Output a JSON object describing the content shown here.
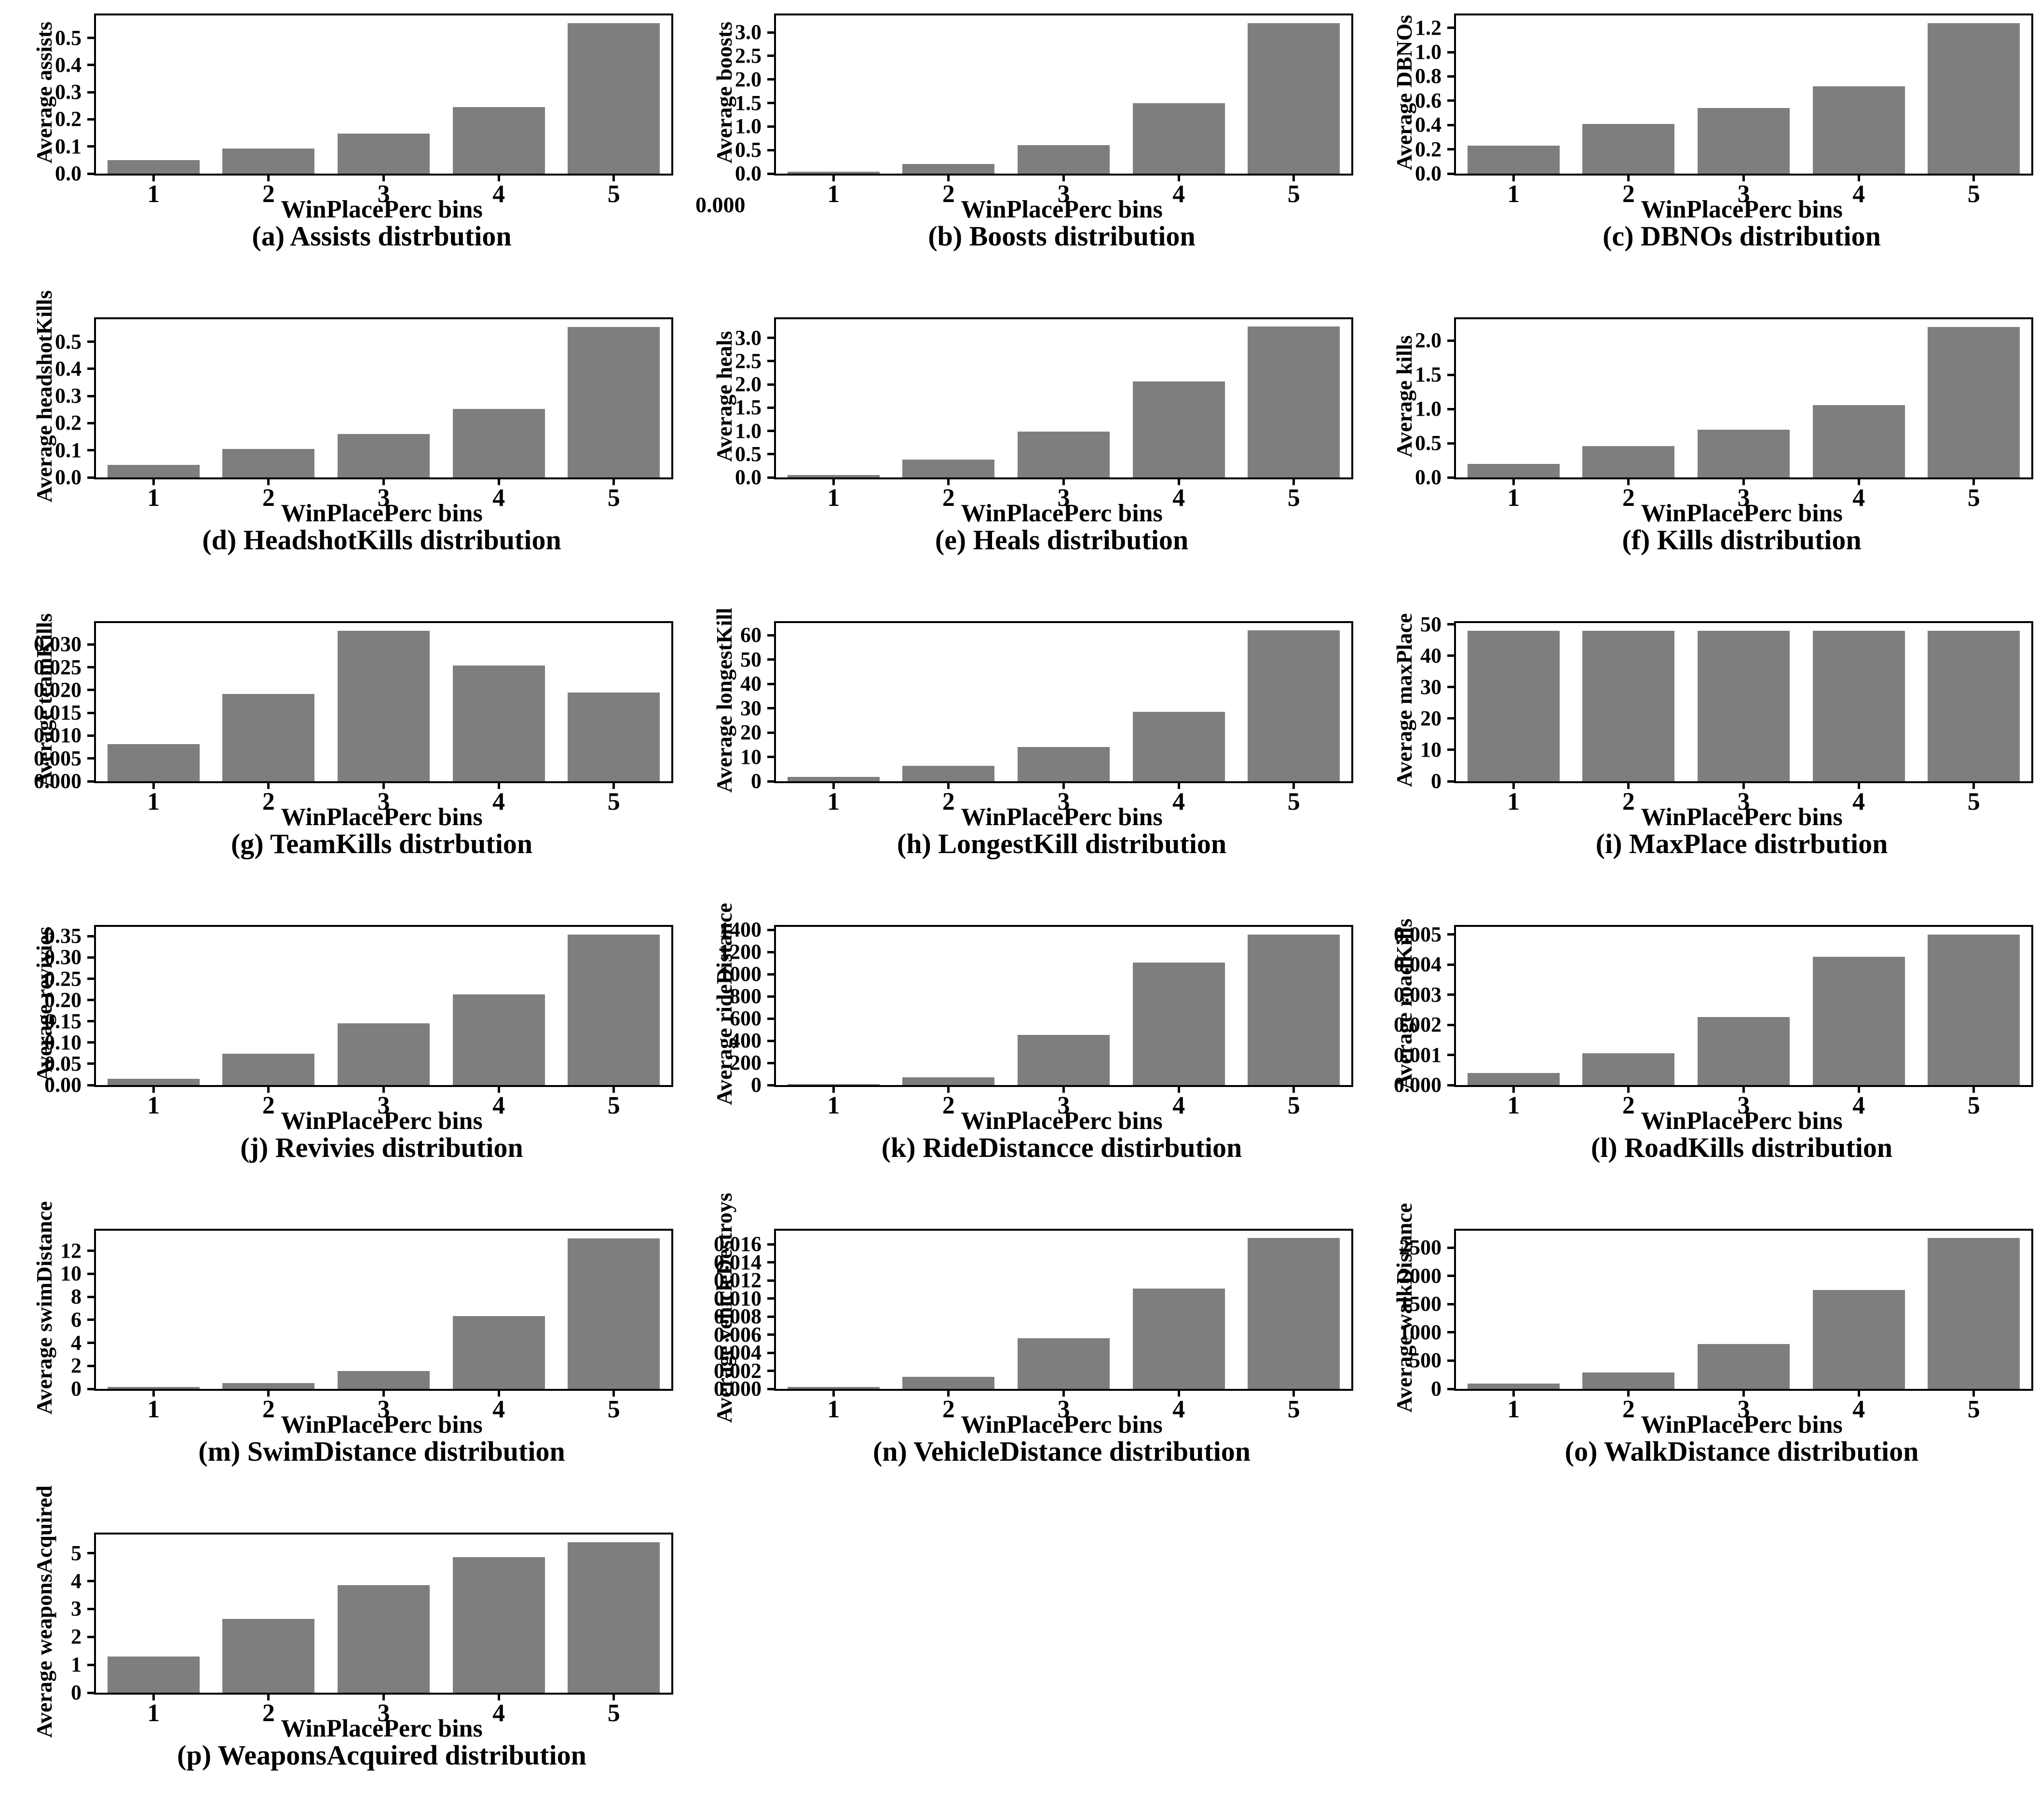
{
  "figure": {
    "background": "#ffffff",
    "bar_color": "#7e7e7e",
    "axis_color": "#000000",
    "xlabel": "WinPlacePerc bins",
    "categories": [
      "1",
      "2",
      "3",
      "4",
      "5"
    ]
  },
  "artifacts": {
    "stray_tick_label": "0.000"
  },
  "chart_data": [
    {
      "id": "a",
      "type": "bar",
      "title": "(a) Assists distrbution",
      "ylabel": "Average assists",
      "xlabel": "WinPlacePerc bins",
      "categories": [
        "1",
        "2",
        "3",
        "4",
        "5"
      ],
      "values": [
        0.05,
        0.092,
        0.148,
        0.245,
        0.555
      ],
      "yticks": [
        0.0,
        0.1,
        0.2,
        0.3,
        0.4,
        0.5
      ],
      "ytick_labels": [
        "0.0",
        "0.1",
        "0.2",
        "0.3",
        "0.4",
        "0.5"
      ],
      "ylim": [
        0,
        0.583
      ],
      "grid": false,
      "legend": null
    },
    {
      "id": "b",
      "type": "bar",
      "title": "(b) Boosts distribution",
      "ylabel": "Average boosts",
      "xlabel": "WinPlacePerc bins",
      "categories": [
        "1",
        "2",
        "3",
        "4",
        "5"
      ],
      "values": [
        0.04,
        0.2,
        0.6,
        1.5,
        3.2
      ],
      "yticks": [
        0.0,
        0.5,
        1.0,
        1.5,
        2.0,
        2.5,
        3.0
      ],
      "ytick_labels": [
        "0.0",
        "0.5",
        "1.0",
        "1.5",
        "2.0",
        "2.5",
        "3.0"
      ],
      "ylim": [
        0,
        3.36
      ],
      "grid": false,
      "legend": null
    },
    {
      "id": "c",
      "type": "bar",
      "title": "(c) DBNOs distribution",
      "ylabel": "Average DBNOs",
      "xlabel": "WinPlacePerc bins",
      "categories": [
        "1",
        "2",
        "3",
        "4",
        "5"
      ],
      "values": [
        0.23,
        0.41,
        0.54,
        0.72,
        1.24
      ],
      "yticks": [
        0.0,
        0.2,
        0.4,
        0.6,
        0.8,
        1.0,
        1.2
      ],
      "ytick_labels": [
        "0.0",
        "0.2",
        "0.4",
        "0.6",
        "0.8",
        "1.0",
        "1.2"
      ],
      "ylim": [
        0,
        1.302
      ],
      "grid": false,
      "legend": null
    },
    {
      "id": "d",
      "type": "bar",
      "title": "(d) HeadshotKills distribution",
      "ylabel": "Average headshotKills",
      "xlabel": "WinPlacePerc bins",
      "categories": [
        "1",
        "2",
        "3",
        "4",
        "5"
      ],
      "values": [
        0.046,
        0.105,
        0.16,
        0.253,
        0.555
      ],
      "yticks": [
        0.0,
        0.1,
        0.2,
        0.3,
        0.4,
        0.5
      ],
      "ytick_labels": [
        "0.0",
        "0.1",
        "0.2",
        "0.3",
        "0.4",
        "0.5"
      ],
      "ylim": [
        0,
        0.583
      ],
      "grid": false,
      "legend": null
    },
    {
      "id": "e",
      "type": "bar",
      "title": "(e) Heals distribution",
      "ylabel": "Average heals",
      "xlabel": "WinPlacePerc bins",
      "categories": [
        "1",
        "2",
        "3",
        "4",
        "5"
      ],
      "values": [
        0.05,
        0.38,
        0.99,
        2.06,
        3.24
      ],
      "yticks": [
        0.0,
        0.5,
        1.0,
        1.5,
        2.0,
        2.5,
        3.0
      ],
      "ytick_labels": [
        "0.0",
        "0.5",
        "1.0",
        "1.5",
        "2.0",
        "2.5",
        "3.0"
      ],
      "ylim": [
        0,
        3.4
      ],
      "grid": false,
      "legend": null
    },
    {
      "id": "f",
      "type": "bar",
      "title": "(f) Kills distribution",
      "ylabel": "Average kills",
      "xlabel": "WinPlacePerc bins",
      "categories": [
        "1",
        "2",
        "3",
        "4",
        "5"
      ],
      "values": [
        0.2,
        0.46,
        0.7,
        1.06,
        2.2
      ],
      "yticks": [
        0.0,
        0.5,
        1.0,
        1.5,
        2.0
      ],
      "ytick_labels": [
        "0.0",
        "0.5",
        "1.0",
        "1.5",
        "2.0"
      ],
      "ylim": [
        0,
        2.31
      ],
      "grid": false,
      "legend": null
    },
    {
      "id": "g",
      "type": "bar",
      "title": "(g) TeamKills distrbution",
      "ylabel": "Average teamKills",
      "xlabel": "WinPlacePerc bins",
      "categories": [
        "1",
        "2",
        "3",
        "4",
        "5"
      ],
      "values": [
        0.0082,
        0.0192,
        0.033,
        0.0254,
        0.0195
      ],
      "yticks": [
        0.0,
        0.005,
        0.01,
        0.015,
        0.02,
        0.025,
        0.03
      ],
      "ytick_labels": [
        "0.000",
        "0.005",
        "0.010",
        "0.015",
        "0.020",
        "0.025",
        "0.030"
      ],
      "ylim": [
        0,
        0.0347
      ],
      "grid": false,
      "legend": null
    },
    {
      "id": "h",
      "type": "bar",
      "title": "(h) LongestKill distribution",
      "ylabel": "Average longestKill",
      "xlabel": "WinPlacePerc bins",
      "categories": [
        "1",
        "2",
        "3",
        "4",
        "5"
      ],
      "values": [
        1.8,
        6.3,
        14,
        28.5,
        62
      ],
      "yticks": [
        0,
        10,
        20,
        30,
        40,
        50,
        60
      ],
      "ytick_labels": [
        "0",
        "10",
        "20",
        "30",
        "40",
        "50",
        "60"
      ],
      "ylim": [
        0,
        65
      ],
      "grid": false,
      "legend": null
    },
    {
      "id": "i",
      "type": "bar",
      "title": "(i) MaxPlace distrbution",
      "ylabel": "Average maxPlace",
      "xlabel": "WinPlacePerc bins",
      "categories": [
        "1",
        "2",
        "3",
        "4",
        "5"
      ],
      "values": [
        48,
        48,
        48,
        48,
        48
      ],
      "yticks": [
        0,
        10,
        20,
        30,
        40,
        50
      ],
      "ytick_labels": [
        "0",
        "10",
        "20",
        "30",
        "40",
        "50"
      ],
      "ylim": [
        0,
        50.4
      ],
      "grid": false,
      "legend": null
    },
    {
      "id": "j",
      "type": "bar",
      "title": "(j) Revivies distribution",
      "ylabel": "Average revivies",
      "xlabel": "WinPlacePerc bins",
      "categories": [
        "1",
        "2",
        "3",
        "4",
        "5"
      ],
      "values": [
        0.015,
        0.074,
        0.145,
        0.213,
        0.354
      ],
      "yticks": [
        0.0,
        0.05,
        0.1,
        0.15,
        0.2,
        0.25,
        0.3,
        0.35
      ],
      "ytick_labels": [
        "0.00",
        "0.05",
        "0.10",
        "0.15",
        "0.20",
        "0.25",
        "0.30",
        "0.35"
      ],
      "ylim": [
        0,
        0.372
      ],
      "grid": false,
      "legend": null
    },
    {
      "id": "k",
      "type": "bar",
      "title": "(k) RideDistancce distirbution",
      "ylabel": "Average rideDistance",
      "xlabel": "WinPlacePerc bins",
      "categories": [
        "1",
        "2",
        "3",
        "4",
        "5"
      ],
      "values": [
        8,
        70,
        455,
        1105,
        1360
      ],
      "yticks": [
        0,
        200,
        400,
        600,
        800,
        1000,
        1200,
        1400
      ],
      "ytick_labels": [
        "0",
        "200",
        "400",
        "600",
        "800",
        "1000",
        "1200",
        "1400"
      ],
      "ylim": [
        0,
        1428
      ],
      "grid": false,
      "legend": null
    },
    {
      "id": "l",
      "type": "bar",
      "title": "(l) RoadKills distribution",
      "ylabel": "Average roadKills",
      "xlabel": "WinPlacePerc bins",
      "categories": [
        "1",
        "2",
        "3",
        "4",
        "5"
      ],
      "values": [
        0.0004,
        0.00105,
        0.00225,
        0.00425,
        0.005
      ],
      "yticks": [
        0.0,
        0.001,
        0.002,
        0.003,
        0.004,
        0.005
      ],
      "ytick_labels": [
        "0.000",
        "0.001",
        "0.002",
        "0.003",
        "0.004",
        "0.005"
      ],
      "ylim": [
        0,
        0.00525
      ],
      "grid": false,
      "legend": null
    },
    {
      "id": "m",
      "type": "bar",
      "title": "(m) SwimDistance distribution",
      "ylabel": "Average swimDistance",
      "xlabel": "WinPlacePerc bins",
      "categories": [
        "1",
        "2",
        "3",
        "4",
        "5"
      ],
      "values": [
        0.15,
        0.5,
        1.55,
        6.35,
        13.1
      ],
      "yticks": [
        0,
        2,
        4,
        6,
        8,
        10,
        12
      ],
      "ytick_labels": [
        "0",
        "2",
        "4",
        "6",
        "8",
        "10",
        "12"
      ],
      "ylim": [
        0,
        13.75
      ],
      "grid": false,
      "legend": null
    },
    {
      "id": "n",
      "type": "bar",
      "title": "(n) VehicleDistance distribution",
      "ylabel": "Average vehicleDestroys",
      "xlabel": "WinPlacePerc bins",
      "categories": [
        "1",
        "2",
        "3",
        "4",
        "5"
      ],
      "values": [
        0.0002,
        0.00135,
        0.0056,
        0.0111,
        0.0167
      ],
      "yticks": [
        0.0,
        0.002,
        0.004,
        0.006,
        0.008,
        0.01,
        0.012,
        0.014,
        0.016
      ],
      "ytick_labels": [
        "0.000",
        "0.002",
        "0.004",
        "0.006",
        "0.008",
        "0.010",
        "0.012",
        "0.014",
        "0.016"
      ],
      "ylim": [
        0,
        0.0175
      ],
      "grid": false,
      "legend": null
    },
    {
      "id": "o",
      "type": "bar",
      "title": "(o) WalkDistance distribution",
      "ylabel": "Average walkDistance",
      "xlabel": "WinPlacePerc bins",
      "categories": [
        "1",
        "2",
        "3",
        "4",
        "5"
      ],
      "values": [
        90,
        290,
        790,
        1750,
        2670
      ],
      "yticks": [
        0,
        500,
        1000,
        1500,
        2000,
        2500
      ],
      "ytick_labels": [
        "0",
        "500",
        "1000",
        "1500",
        "2000",
        "2500"
      ],
      "ylim": [
        0,
        2800
      ],
      "grid": false,
      "legend": null
    },
    {
      "id": "p",
      "type": "bar",
      "title": "(p) WeaponsAcquired distribution",
      "ylabel": "Average weaponsAcquired",
      "xlabel": "WinPlacePerc bins",
      "categories": [
        "1",
        "2",
        "3",
        "4",
        "5"
      ],
      "values": [
        1.3,
        2.65,
        3.85,
        4.85,
        5.4
      ],
      "yticks": [
        0,
        1,
        2,
        3,
        4,
        5
      ],
      "ytick_labels": [
        "0",
        "1",
        "2",
        "3",
        "4",
        "5"
      ],
      "ylim": [
        0,
        5.67
      ],
      "grid": false,
      "legend": null
    }
  ]
}
